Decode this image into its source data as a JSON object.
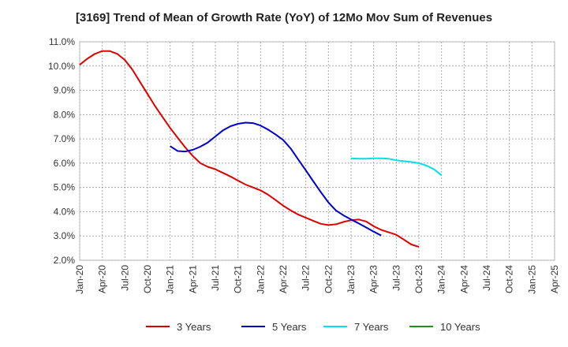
{
  "chart_data": {
    "type": "line",
    "title": "[3169]  Trend of Mean of Growth Rate (YoY) of 12Mo Mov Sum of Revenues",
    "xlabel": "",
    "ylabel": "",
    "ylim": [
      2.0,
      11.0
    ],
    "y_ticks": [
      2.0,
      3.0,
      4.0,
      5.0,
      6.0,
      7.0,
      8.0,
      9.0,
      10.0,
      11.0
    ],
    "y_tick_labels": [
      "2.0%",
      "3.0%",
      "4.0%",
      "5.0%",
      "6.0%",
      "7.0%",
      "8.0%",
      "9.0%",
      "10.0%",
      "11.0%"
    ],
    "x_ticks": [
      "Jan-20",
      "Apr-20",
      "Jul-20",
      "Oct-20",
      "Jan-21",
      "Apr-21",
      "Jul-21",
      "Oct-21",
      "Jan-22",
      "Apr-22",
      "Jul-22",
      "Oct-22",
      "Jan-23",
      "Apr-23",
      "Jul-23",
      "Oct-23",
      "Jan-24",
      "Apr-24",
      "Jul-24",
      "Oct-24",
      "Jan-25",
      "Apr-25"
    ],
    "grid": true,
    "legend_position": "bottom",
    "series": [
      {
        "name": "3 Years",
        "color": "#dd0000",
        "start_index": 0,
        "values": [
          10.05,
          10.3,
          10.5,
          10.62,
          10.62,
          10.5,
          10.25,
          9.85,
          9.35,
          8.85,
          8.35,
          7.9,
          7.45,
          7.05,
          6.65,
          6.3,
          6.0,
          5.85,
          5.75,
          5.6,
          5.45,
          5.28,
          5.12,
          5.0,
          4.88,
          4.7,
          4.48,
          4.25,
          4.05,
          3.88,
          3.75,
          3.62,
          3.5,
          3.45,
          3.48,
          3.58,
          3.65,
          3.68,
          3.6,
          3.4,
          3.25,
          3.15,
          3.05,
          2.85,
          2.65,
          2.55
        ]
      },
      {
        "name": "5 Years",
        "color": "#0000cc",
        "start_index": 12,
        "values": [
          6.7,
          6.5,
          6.48,
          6.55,
          6.68,
          6.85,
          7.1,
          7.35,
          7.52,
          7.62,
          7.67,
          7.65,
          7.55,
          7.38,
          7.18,
          6.95,
          6.6,
          6.15,
          5.7,
          5.25,
          4.8,
          4.38,
          4.05,
          3.85,
          3.68,
          3.52,
          3.35,
          3.18,
          3.02
        ]
      },
      {
        "name": "7 Years",
        "color": "#00e0e8",
        "start_index": 36,
        "values": [
          6.2,
          6.18,
          6.18,
          6.2,
          6.2,
          6.18,
          6.12,
          6.08,
          6.05,
          6.0,
          5.9,
          5.75,
          5.5
        ]
      },
      {
        "name": "10 Years",
        "color": "#228b22",
        "start_index": 0,
        "values": []
      }
    ]
  }
}
